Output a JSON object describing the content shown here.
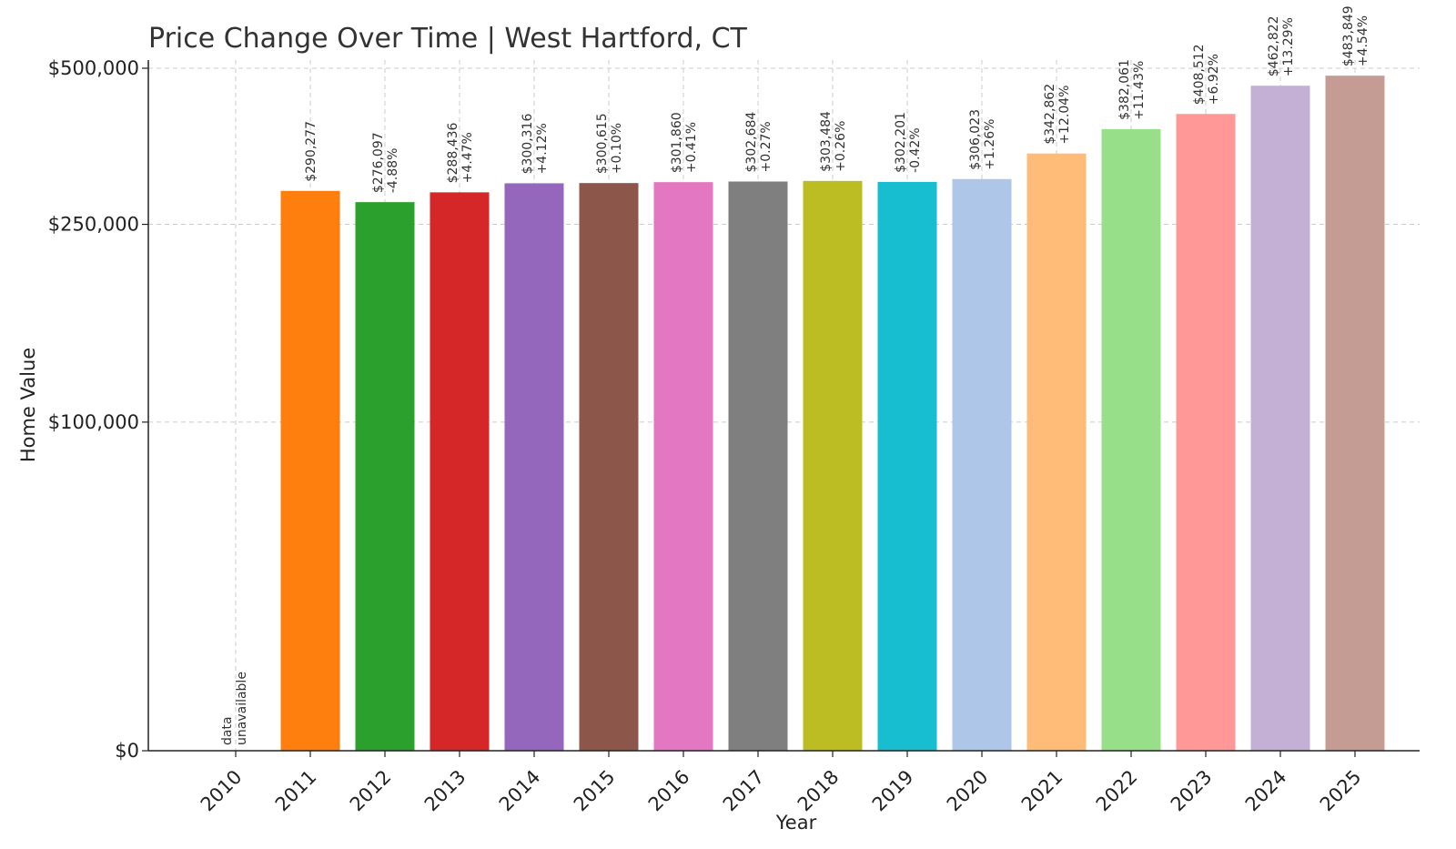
{
  "chart_data": {
    "type": "bar",
    "title": "Price Change Over Time | West Hartford, CT",
    "xlabel": "Year",
    "ylabel": "Home Value",
    "ylim": [
      0,
      500000
    ],
    "y_scale": "symlog-like (ticks at $0, $100,000, $250,000, $500,000)",
    "yticks": [
      {
        "value": 0,
        "label": "$0"
      },
      {
        "value": 100000,
        "label": "$100,000"
      },
      {
        "value": 250000,
        "label": "$250,000"
      },
      {
        "value": 500000,
        "label": "$500,000"
      }
    ],
    "grid": true,
    "categories": [
      "2010",
      "2011",
      "2012",
      "2013",
      "2014",
      "2015",
      "2016",
      "2017",
      "2018",
      "2019",
      "2020",
      "2021",
      "2022",
      "2023",
      "2024",
      "2025"
    ],
    "values": [
      null,
      290277,
      276097,
      288436,
      300316,
      300615,
      301860,
      302684,
      303484,
      302201,
      306023,
      342862,
      382061,
      408512,
      462822,
      483849
    ],
    "value_labels": [
      "",
      "$290,277",
      "$276,097",
      "$288,436",
      "$300,316",
      "$300,615",
      "$301,860",
      "$302,684",
      "$303,484",
      "$302,201",
      "$306,023",
      "$342,862",
      "$382,061",
      "$408,512",
      "$462,822",
      "$483,849"
    ],
    "change_labels": [
      "",
      "",
      "-4.88%",
      "+4.47%",
      "+4.12%",
      "+0.10%",
      "+0.41%",
      "+0.27%",
      "+0.26%",
      "-0.42%",
      "+1.26%",
      "+12.04%",
      "+11.43%",
      "+6.92%",
      "+13.29%",
      "+4.54%"
    ],
    "missing_label": [
      "data",
      "unavailable"
    ],
    "colors": [
      "#1f77b4",
      "#ff7f0e",
      "#2ca02c",
      "#d62728",
      "#9467bd",
      "#8c564b",
      "#e377c2",
      "#7f7f7f",
      "#bcbd22",
      "#17becf",
      "#aec7e8",
      "#ffbb78",
      "#98df8a",
      "#ff9896",
      "#c5b0d5",
      "#c49c94"
    ]
  }
}
